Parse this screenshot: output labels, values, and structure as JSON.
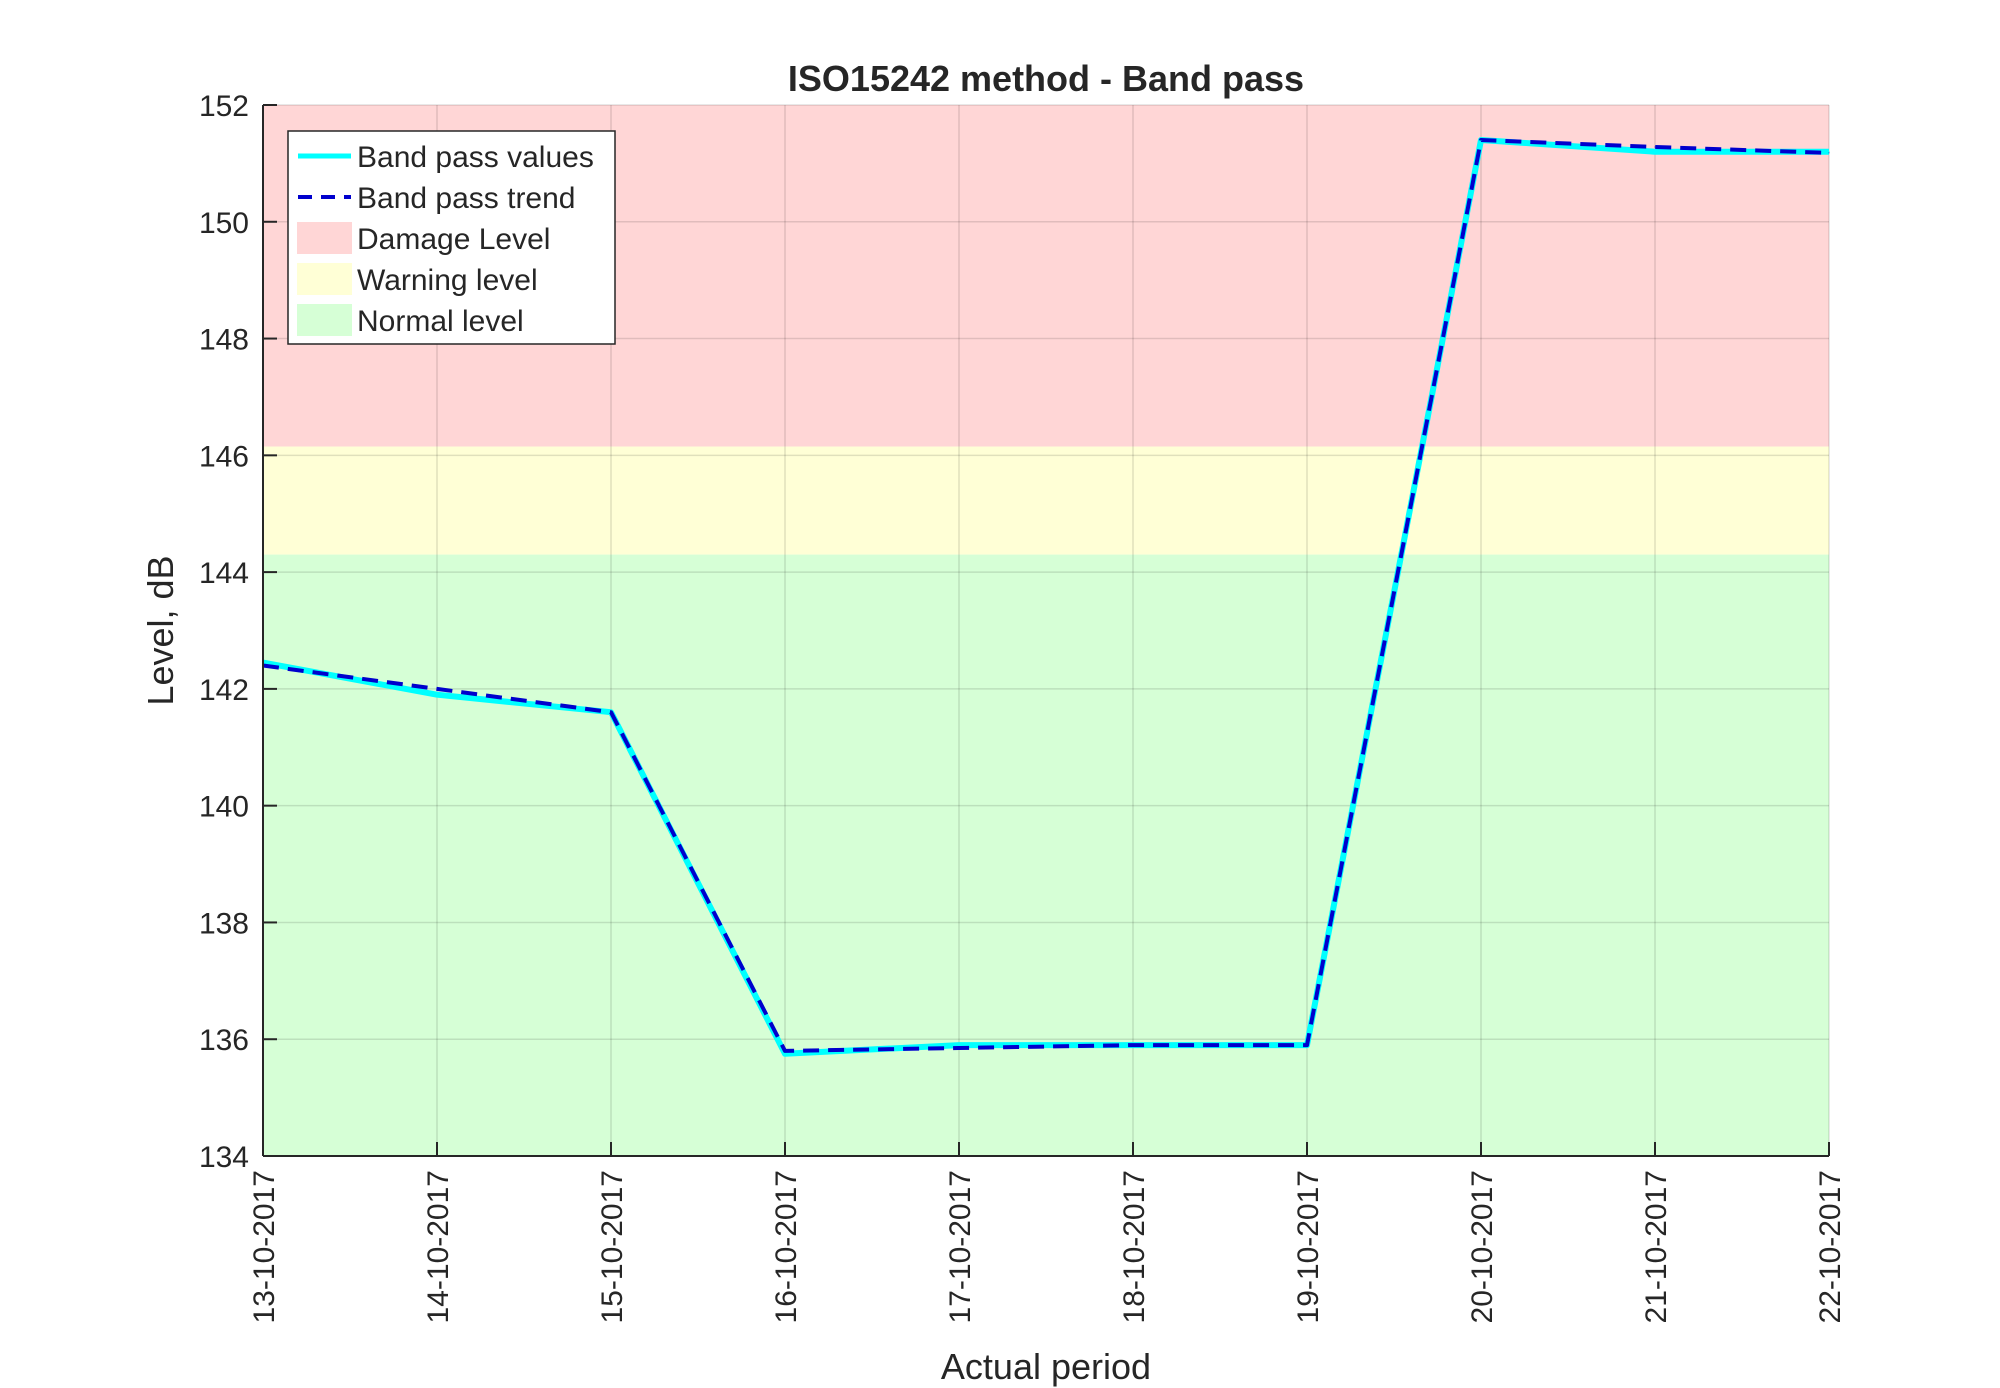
{
  "chart_data": {
    "type": "line",
    "title": "ISO15242 method - Band pass",
    "xlabel": "Actual period",
    "ylabel": "Level, dB",
    "categories": [
      "13-10-2017",
      "14-10-2017",
      "15-10-2017",
      "16-10-2017",
      "17-10-2017",
      "18-10-2017",
      "19-10-2017",
      "20-10-2017",
      "21-10-2017",
      "22-10-2017"
    ],
    "ylim": [
      134,
      152
    ],
    "yticks": [
      134,
      136,
      138,
      140,
      142,
      144,
      146,
      148,
      150,
      152
    ],
    "grid": true,
    "legend_position": "top-left",
    "series": [
      {
        "name": "Band pass values",
        "style": "solid",
        "color": "#00ffff",
        "values": [
          142.45,
          141.9,
          141.6,
          135.75,
          135.9,
          135.9,
          135.9,
          151.4,
          151.2,
          151.2
        ]
      },
      {
        "name": "Band pass trend",
        "style": "dashed",
        "color": "#0000cd",
        "values": [
          142.4,
          142.0,
          141.6,
          135.8,
          135.85,
          135.9,
          135.9,
          151.4,
          151.28,
          151.18
        ]
      }
    ],
    "bands": [
      {
        "name": "Damage Level",
        "from": 146.15,
        "to": 152,
        "color": "#ffd6d6"
      },
      {
        "name": "Warning level",
        "from": 144.3,
        "to": 146.15,
        "color": "#ffffd6"
      },
      {
        "name": "Normal level",
        "from": 134,
        "to": 144.3,
        "color": "#d6ffd6"
      }
    ]
  }
}
